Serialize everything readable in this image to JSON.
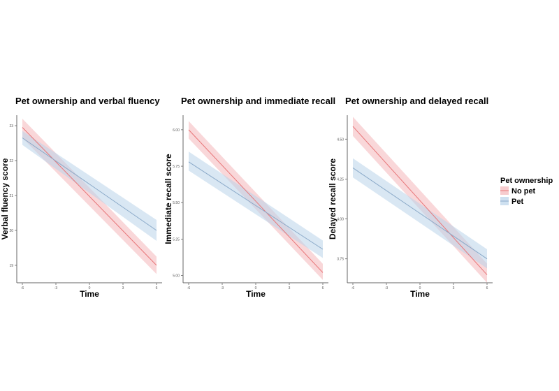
{
  "chart_data": [
    {
      "type": "line",
      "title": "Pet ownership and verbal fluency",
      "xlabel": "Time",
      "ylabel": "Verbal fluency score",
      "xlim": [
        -6,
        6
      ],
      "ylim": [
        18.5,
        23.3
      ],
      "xticks": [
        -6,
        -3,
        0,
        3,
        6
      ],
      "yticks": [
        19,
        20,
        21,
        22,
        23
      ],
      "ytick_labels": [
        "19",
        "20",
        "21",
        "22",
        "23"
      ],
      "series": [
        {
          "name": "No pet",
          "x": [
            -6,
            6
          ],
          "values": [
            22.95,
            19.0
          ],
          "ci_lower": [
            22.65,
            18.75
          ],
          "ci_upper": [
            23.2,
            19.25
          ]
        },
        {
          "name": "Pet",
          "x": [
            -6,
            6
          ],
          "values": [
            22.65,
            20.0
          ],
          "ci_lower": [
            22.45,
            19.7
          ],
          "ci_upper": [
            22.85,
            20.3
          ]
        }
      ]
    },
    {
      "type": "line",
      "title": "Pet ownership and immediate recall",
      "xlabel": "Time",
      "ylabel": "Immediate recall score",
      "xlim": [
        -6,
        6
      ],
      "ylim": [
        4.95,
        6.1
      ],
      "xticks": [
        -6,
        -3,
        0,
        3,
        6
      ],
      "yticks": [
        5.0,
        5.25,
        5.5,
        5.75,
        6.0
      ],
      "ytick_labels": [
        "5.00",
        "5.25",
        "5.50",
        "5.75",
        "6.00"
      ],
      "series": [
        {
          "name": "No pet",
          "x": [
            -6,
            6
          ],
          "values": [
            6.0,
            5.02
          ],
          "ci_lower": [
            5.94,
            4.97
          ],
          "ci_upper": [
            6.06,
            5.08
          ]
        },
        {
          "name": "Pet",
          "x": [
            -6,
            6
          ],
          "values": [
            5.78,
            5.18
          ],
          "ci_lower": [
            5.72,
            5.12
          ],
          "ci_upper": [
            5.85,
            5.24
          ]
        }
      ]
    },
    {
      "type": "line",
      "title": "Pet ownership and delayed recall",
      "xlabel": "Time",
      "ylabel": "Delayed recall score",
      "xlim": [
        -6,
        6
      ],
      "ylim": [
        3.6,
        4.65
      ],
      "xticks": [
        -6,
        -3,
        0,
        3,
        6
      ],
      "yticks": [
        3.75,
        4.0,
        4.25,
        4.5
      ],
      "ytick_labels": [
        "3.75",
        "4.00",
        "4.25",
        "4.50"
      ],
      "series": [
        {
          "name": "No pet",
          "x": [
            -6,
            6
          ],
          "values": [
            4.58,
            3.65
          ],
          "ci_lower": [
            4.52,
            3.6
          ],
          "ci_upper": [
            4.64,
            3.72
          ]
        },
        {
          "name": "Pet",
          "x": [
            -6,
            6
          ],
          "values": [
            4.32,
            3.75
          ],
          "ci_lower": [
            4.26,
            3.69
          ],
          "ci_upper": [
            4.38,
            3.81
          ]
        }
      ]
    }
  ],
  "legend": {
    "title": "Pet ownership",
    "position": "right",
    "entries": [
      {
        "label": "No pet",
        "series": "No pet"
      },
      {
        "label": "Pet",
        "series": "Pet"
      }
    ]
  },
  "colors": {
    "No pet": {
      "line": "#e8777a",
      "fill": "#f4b7b9"
    },
    "Pet": {
      "line": "#8aa9c8",
      "fill": "#b9d3ea"
    },
    "axis": "#666666"
  }
}
